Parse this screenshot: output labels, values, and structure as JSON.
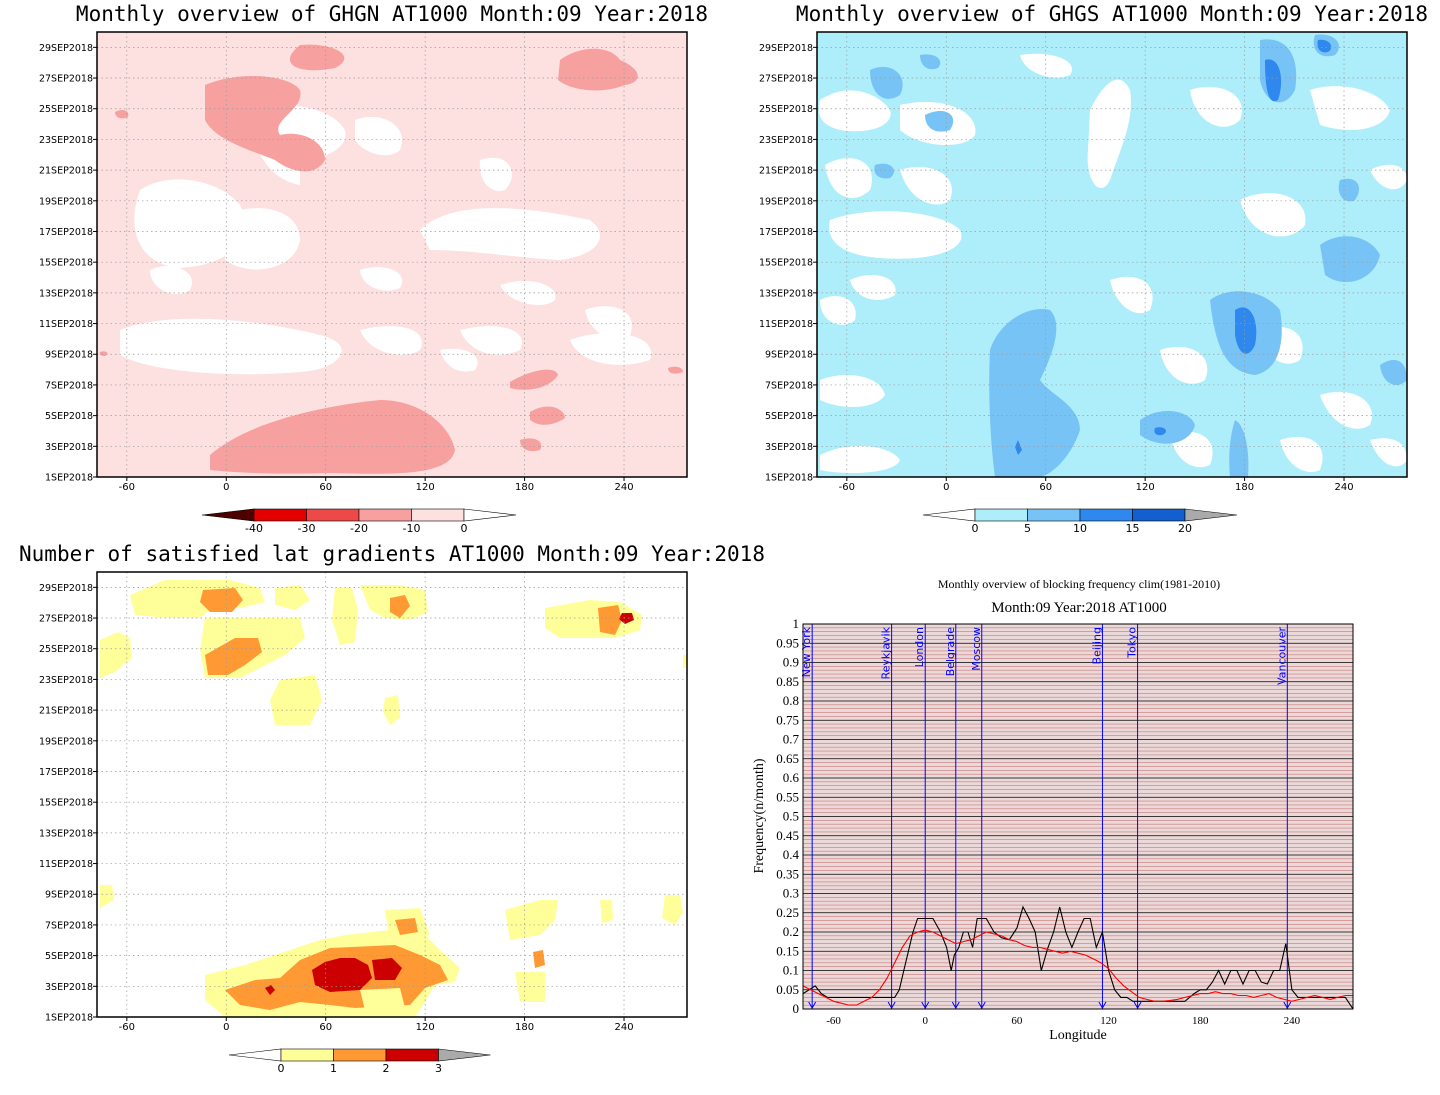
{
  "colors": {
    "ghgn": [
      "#4d0000",
      "#e30000",
      "#ee4949",
      "#f7a0a0",
      "#fde0e0",
      "#ffffff"
    ],
    "ghgs": [
      "#ffffff",
      "#aeeefa",
      "#78c3f5",
      "#2e88ee",
      "#145fcf",
      "#aaaaaa"
    ],
    "grad": [
      "#ffffff",
      "#ffff99",
      "#ff9933",
      "#cc0000",
      "#aaaaaa"
    ]
  },
  "panels": [
    {
      "id": "ghgn",
      "title": "Monthly overview of GHGN AT1000 Month:09 Year:2018",
      "colorbar_labels": [
        "-40",
        "-30",
        "-20",
        "-10",
        "0"
      ]
    },
    {
      "id": "ghgs",
      "title": "Monthly overview of GHGS AT1000 Month:09 Year:2018",
      "colorbar_labels": [
        "0",
        "5",
        "10",
        "15",
        "20"
      ]
    },
    {
      "id": "grad",
      "title": "Number of satisfied lat gradients AT1000 Month:09 Year:2018",
      "colorbar_labels": [
        "0",
        "1",
        "2",
        "3"
      ]
    }
  ],
  "hov_axis": {
    "x_ticks": [
      "-60",
      "0",
      "60",
      "120",
      "180",
      "240"
    ],
    "x_values": [
      -60,
      0,
      60,
      120,
      180,
      240
    ],
    "xlim": [
      -78,
      278
    ],
    "y_ticks": [
      "1SEP2018",
      "3SEP2018",
      "5SEP2018",
      "7SEP2018",
      "9SEP2018",
      "11SEP2018",
      "13SEP2018",
      "15SEP2018",
      "17SEP2018",
      "19SEP2018",
      "21SEP2018",
      "23SEP2018",
      "25SEP2018",
      "27SEP2018",
      "29SEP2018"
    ],
    "y_values": [
      1,
      3,
      5,
      7,
      9,
      11,
      13,
      15,
      17,
      19,
      21,
      23,
      25,
      27,
      29
    ],
    "ylim": [
      1,
      30
    ]
  },
  "chart_data": {
    "type": "line",
    "title": "Monthly overview of blocking frequency clim(1981-2010)",
    "subtitle": "Month:09 Year:2018  AT1000",
    "xlabel": "Longitude",
    "ylabel": "Frequency(n/month)",
    "xlim": [
      -80,
      280
    ],
    "ylim": [
      0,
      1
    ],
    "x_ticks": [
      "-60",
      "0",
      "60",
      "120",
      "180",
      "240"
    ],
    "x_tick_values": [
      -60,
      0,
      60,
      120,
      180,
      240
    ],
    "y_ticks": [
      "0",
      "0.05",
      "0.1",
      "0.15",
      "0.2",
      "0.25",
      "0.3",
      "0.35",
      "0.4",
      "0.45",
      "0.5",
      "0.55",
      "0.6",
      "0.65",
      "0.7",
      "0.75",
      "0.8",
      "0.85",
      "0.9",
      "0.95",
      "1"
    ],
    "y_tick_values": [
      0,
      0.05,
      0.1,
      0.15,
      0.2,
      0.25,
      0.3,
      0.35,
      0.4,
      0.45,
      0.5,
      0.55,
      0.6,
      0.65,
      0.7,
      0.75,
      0.8,
      0.85,
      0.9,
      0.95,
      1
    ],
    "cities": [
      {
        "name": "New York",
        "lon": -74
      },
      {
        "name": "Reykjavik",
        "lon": -22
      },
      {
        "name": "London",
        "lon": 0
      },
      {
        "name": "Belgrade",
        "lon": 20
      },
      {
        "name": "Moscow",
        "lon": 37
      },
      {
        "name": "Beijing",
        "lon": 116
      },
      {
        "name": "Tokyo",
        "lon": 139
      },
      {
        "name": "Vancouver",
        "lon": 237
      }
    ],
    "series": [
      {
        "color": "#000000",
        "x": [
          -80,
          -76,
          -72,
          -68,
          -64,
          -60,
          -50,
          -40,
          -30,
          -25,
          -20,
          -17,
          -14,
          -11,
          -8,
          -5,
          0,
          5,
          10,
          14,
          17,
          19,
          22,
          25,
          28,
          31,
          34,
          40,
          45,
          50,
          55,
          60,
          64,
          68,
          72,
          76,
          80,
          84,
          88,
          92,
          96,
          100,
          104,
          108,
          112,
          116,
          120,
          124,
          128,
          132,
          136,
          140,
          150,
          160,
          170,
          176,
          180,
          184,
          188,
          192,
          196,
          200,
          204,
          208,
          212,
          216,
          220,
          224,
          228,
          232,
          236,
          240,
          244,
          250,
          260,
          270,
          275,
          280
        ],
        "y": [
          0.04,
          0.05,
          0.06,
          0.04,
          0.03,
          0.03,
          0.03,
          0.03,
          0.03,
          0.03,
          0.03,
          0.05,
          0.1,
          0.15,
          0.2,
          0.235,
          0.235,
          0.235,
          0.2,
          0.16,
          0.1,
          0.14,
          0.16,
          0.2,
          0.2,
          0.16,
          0.235,
          0.235,
          0.2,
          0.185,
          0.18,
          0.21,
          0.265,
          0.235,
          0.2,
          0.1,
          0.155,
          0.2,
          0.265,
          0.2,
          0.16,
          0.2,
          0.235,
          0.235,
          0.16,
          0.2,
          0.1,
          0.05,
          0.03,
          0.03,
          0.02,
          0.02,
          0.02,
          0.02,
          0.02,
          0.04,
          0.05,
          0.05,
          0.07,
          0.1,
          0.065,
          0.1,
          0.1,
          0.065,
          0.1,
          0.1,
          0.07,
          0.065,
          0.1,
          0.1,
          0.17,
          0.05,
          0.03,
          0.03,
          0.03,
          0.03,
          0.03,
          0.0
        ]
      },
      {
        "color": "#ff0000",
        "x": [
          -80,
          -75,
          -70,
          -65,
          -60,
          -55,
          -50,
          -45,
          -40,
          -35,
          -30,
          -25,
          -20,
          -15,
          -10,
          -5,
          0,
          5,
          10,
          15,
          20,
          25,
          30,
          35,
          40,
          45,
          50,
          55,
          60,
          65,
          70,
          75,
          80,
          85,
          90,
          95,
          100,
          105,
          110,
          115,
          120,
          125,
          130,
          135,
          140,
          145,
          150,
          155,
          160,
          165,
          170,
          175,
          180,
          185,
          190,
          195,
          200,
          205,
          210,
          215,
          220,
          225,
          230,
          235,
          240,
          245,
          250,
          255,
          260,
          265,
          270,
          275,
          280
        ],
        "y": [
          0.06,
          0.05,
          0.04,
          0.03,
          0.02,
          0.015,
          0.01,
          0.01,
          0.02,
          0.03,
          0.05,
          0.08,
          0.12,
          0.16,
          0.19,
          0.2,
          0.205,
          0.2,
          0.19,
          0.18,
          0.17,
          0.175,
          0.18,
          0.19,
          0.2,
          0.195,
          0.19,
          0.18,
          0.175,
          0.165,
          0.16,
          0.16,
          0.155,
          0.15,
          0.145,
          0.15,
          0.145,
          0.14,
          0.13,
          0.12,
          0.105,
          0.08,
          0.06,
          0.045,
          0.03,
          0.025,
          0.02,
          0.02,
          0.022,
          0.025,
          0.03,
          0.035,
          0.04,
          0.04,
          0.045,
          0.04,
          0.04,
          0.035,
          0.035,
          0.03,
          0.035,
          0.04,
          0.03,
          0.025,
          0.02,
          0.025,
          0.03,
          0.035,
          0.03,
          0.025,
          0.03,
          0.035,
          0.035
        ]
      }
    ]
  }
}
